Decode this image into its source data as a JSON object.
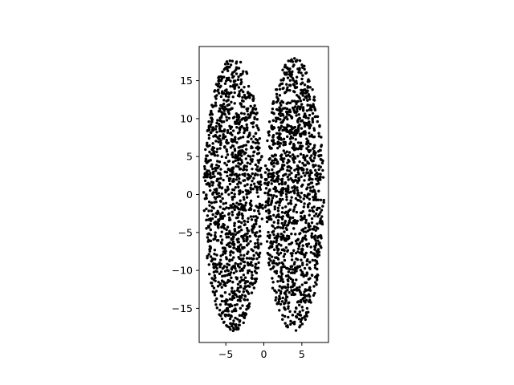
{
  "chart_data": {
    "type": "scatter",
    "title": "",
    "xlabel": "",
    "ylabel": "",
    "xlim": [
      -8.5,
      8.5
    ],
    "ylim": [
      -19.5,
      19.5
    ],
    "x_ticks": [
      -5,
      0,
      5
    ],
    "x_tick_labels": [
      "−5",
      "0",
      "5"
    ],
    "y_ticks": [
      -15,
      -10,
      -5,
      0,
      5,
      10,
      15
    ],
    "y_tick_labels": [
      "−15",
      "−10",
      "−5",
      "0",
      "5",
      "10",
      "15"
    ],
    "grid": false,
    "legend": "none",
    "marker_color": "#000000",
    "clusters": [
      {
        "center_x": -4.0,
        "center_y": 0.0,
        "x_half_width": 3.9,
        "y_half_height": 18.0,
        "approx_points": 1300
      },
      {
        "center_x": 4.0,
        "center_y": 0.0,
        "x_half_width": 3.9,
        "y_half_height": 18.0,
        "approx_points": 1300
      }
    ]
  }
}
